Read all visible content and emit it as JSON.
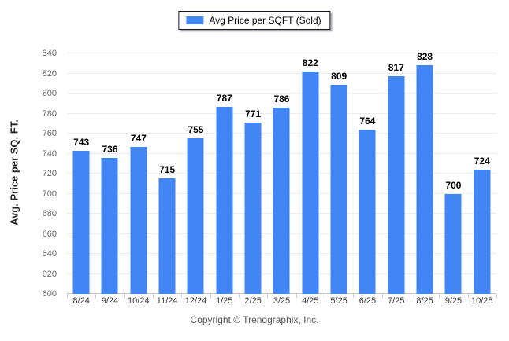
{
  "legend": {
    "label": "Avg Price per SQFT (Sold)",
    "swatch_color": "#4285f4"
  },
  "chart_data": {
    "type": "bar",
    "title": "",
    "categories": [
      "8/24",
      "9/24",
      "10/24",
      "11/24",
      "12/24",
      "1/25",
      "2/25",
      "3/25",
      "4/25",
      "5/25",
      "6/25",
      "7/25",
      "8/25",
      "9/25",
      "10/25"
    ],
    "series": [
      {
        "name": "Avg Price per SQFT (Sold)",
        "values": [
          743,
          736,
          747,
          715,
          755,
          787,
          771,
          786,
          822,
          809,
          764,
          817,
          828,
          700,
          724
        ]
      }
    ],
    "xlabel": "",
    "ylabel": "Avg. Price per SQ. FT.",
    "ylim": [
      600,
      840
    ],
    "y_ticks": [
      600,
      620,
      640,
      660,
      680,
      700,
      720,
      740,
      760,
      780,
      800,
      820,
      840
    ],
    "grid": true,
    "bar_color": "#4285f4",
    "legend_position": "top-center",
    "value_labels": true
  },
  "footer": {
    "copyright": "Copyright © Trendgraphix, Inc."
  }
}
